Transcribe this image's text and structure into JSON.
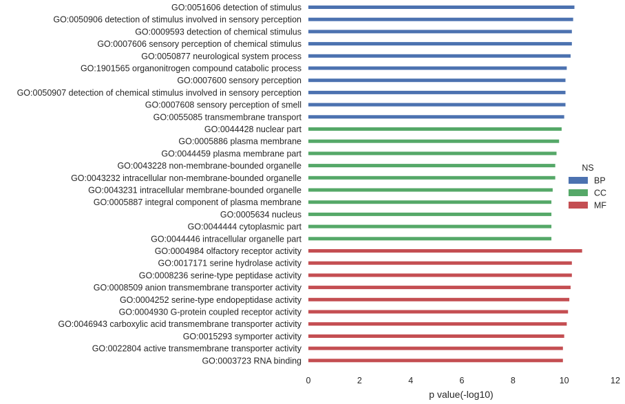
{
  "chart_data": {
    "type": "bar",
    "orientation": "horizontal",
    "xlabel": "p value(-log10)",
    "xlim": [
      0,
      12
    ],
    "xticks": [
      0,
      2,
      4,
      6,
      8,
      10,
      12
    ],
    "grid": false,
    "legend": {
      "title": "NS",
      "placement": "right",
      "entries": [
        {
          "name": "BP",
          "color": "#4c72b0"
        },
        {
          "name": "CC",
          "color": "#55a868"
        },
        {
          "name": "MF",
          "color": "#c44e52"
        }
      ]
    },
    "bars": [
      {
        "label": "GO:0051606 detection of stimulus",
        "value": 10.4,
        "ns": "BP"
      },
      {
        "label": "GO:0050906 detection of stimulus involved in sensory perception",
        "value": 10.35,
        "ns": "BP"
      },
      {
        "label": "GO:0009593 detection of chemical stimulus",
        "value": 10.3,
        "ns": "BP"
      },
      {
        "label": "GO:0007606 sensory perception of chemical stimulus",
        "value": 10.3,
        "ns": "BP"
      },
      {
        "label": "GO:0050877 neurological system process",
        "value": 10.25,
        "ns": "BP"
      },
      {
        "label": "GO:1901565 organonitrogen compound catabolic process",
        "value": 10.1,
        "ns": "BP"
      },
      {
        "label": "GO:0007600 sensory perception",
        "value": 10.05,
        "ns": "BP"
      },
      {
        "label": "GO:0050907 detection of chemical stimulus involved in sensory perception",
        "value": 10.05,
        "ns": "BP"
      },
      {
        "label": "GO:0007608 sensory perception of smell",
        "value": 10.05,
        "ns": "BP"
      },
      {
        "label": "GO:0055085 transmembrane transport",
        "value": 10.0,
        "ns": "BP"
      },
      {
        "label": "GO:0044428 nuclear part",
        "value": 9.9,
        "ns": "CC"
      },
      {
        "label": "GO:0005886 plasma membrane",
        "value": 9.8,
        "ns": "CC"
      },
      {
        "label": "GO:0044459 plasma membrane part",
        "value": 9.7,
        "ns": "CC"
      },
      {
        "label": "GO:0043228 non-membrane-bounded organelle",
        "value": 9.65,
        "ns": "CC"
      },
      {
        "label": "GO:0043232 intracellular non-membrane-bounded organelle",
        "value": 9.65,
        "ns": "CC"
      },
      {
        "label": "GO:0043231 intracellular membrane-bounded organelle",
        "value": 9.55,
        "ns": "CC"
      },
      {
        "label": "GO:0005887 integral component of plasma membrane",
        "value": 9.5,
        "ns": "CC"
      },
      {
        "label": "GO:0005634 nucleus",
        "value": 9.5,
        "ns": "CC"
      },
      {
        "label": "GO:0044444 cytoplasmic part",
        "value": 9.5,
        "ns": "CC"
      },
      {
        "label": "GO:0044446 intracellular organelle part",
        "value": 9.5,
        "ns": "CC"
      },
      {
        "label": "GO:0004984 olfactory receptor activity",
        "value": 10.7,
        "ns": "MF"
      },
      {
        "label": "GO:0017171 serine hydrolase activity",
        "value": 10.3,
        "ns": "MF"
      },
      {
        "label": "GO:0008236 serine-type peptidase activity",
        "value": 10.3,
        "ns": "MF"
      },
      {
        "label": "GO:0008509 anion transmembrane transporter activity",
        "value": 10.25,
        "ns": "MF"
      },
      {
        "label": "GO:0004252 serine-type endopeptidase activity",
        "value": 10.2,
        "ns": "MF"
      },
      {
        "label": "GO:0004930 G-protein coupled receptor activity",
        "value": 10.15,
        "ns": "MF"
      },
      {
        "label": "GO:0046943 carboxylic acid transmembrane transporter activity",
        "value": 10.1,
        "ns": "MF"
      },
      {
        "label": "GO:0015293 symporter activity",
        "value": 10.0,
        "ns": "MF"
      },
      {
        "label": "GO:0022804 active transmembrane transporter activity",
        "value": 9.95,
        "ns": "MF"
      },
      {
        "label": "GO:0003723 RNA binding",
        "value": 9.95,
        "ns": "MF"
      }
    ]
  }
}
